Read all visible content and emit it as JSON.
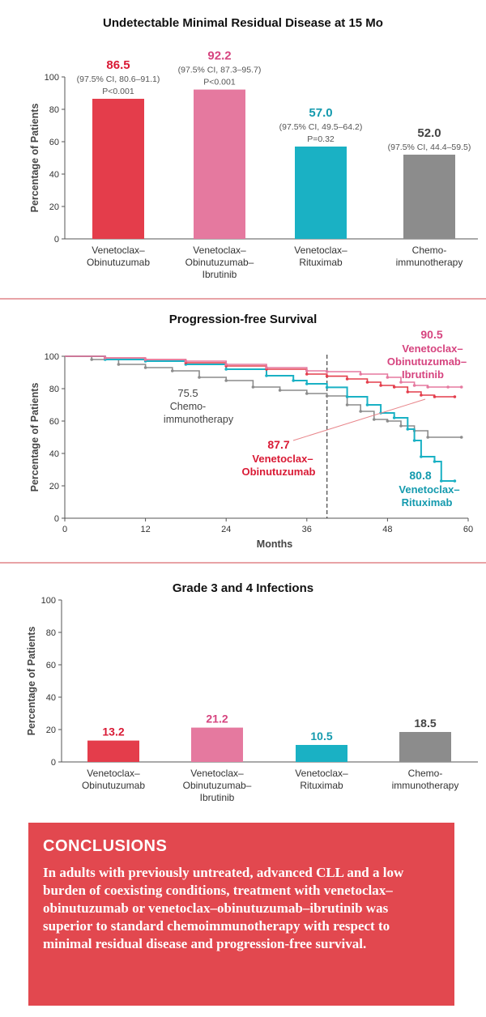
{
  "panel1": {
    "title": "Undetectable Minimal Residual Disease at 15 Mo",
    "ylabel": "Percentage of Patients"
  },
  "panel2": {
    "title": "Progression-free Survival",
    "ylabel": "Percentage of Patients",
    "xlabel": "Months",
    "labels": {
      "chemo_value": "75.5",
      "chemo_name1": "Chemo-",
      "chemo_name2": "immunotherapy",
      "vo_value": "87.7",
      "vo_name1": "Venetoclax–",
      "vo_name2": "Obinutuzumab",
      "voi_value": "90.5",
      "voi_name1": "Venetoclax–",
      "voi_name2": "Obinutuzumab–",
      "voi_name3": "Ibrutinib",
      "vr_value": "80.8",
      "vr_name1": "Venetoclax–",
      "vr_name2": "Rituximab"
    }
  },
  "panel3": {
    "title": "Grade 3 and 4 Infections",
    "ylabel": "Percentage of Patients"
  },
  "conclusions": {
    "heading": "CONCLUSIONS",
    "text": "In adults with previously untreated, advanced CLL and a low burden of coexisting conditions, treatment with venetoclax–obinutuzumab or venetoclax–obinutuzumab–ibrutinib was superior to standard chemoimmunotherapy with respect to minimal residual disease and progression-free survival."
  },
  "colors": {
    "vo": "#e43d4b",
    "voi": "#e5799f",
    "vr": "#1ab1c4",
    "chemo": "#8c8c8c",
    "vo_text": "#d91a35",
    "voi_text": "#d6447f",
    "vr_text": "#149aae",
    "chemo_text": "#444444"
  },
  "chart_data": [
    {
      "type": "bar",
      "title": "Undetectable Minimal Residual Disease at 15 Mo",
      "ylabel": "Percentage of Patients",
      "ylim": [
        0,
        100
      ],
      "yticks": [
        0,
        20,
        40,
        60,
        80,
        100
      ],
      "categories": [
        [
          "Venetoclax–",
          "Obinutuzumab"
        ],
        [
          "Venetoclax–",
          "Obinutuzumab–",
          "Ibrutinib"
        ],
        [
          "Venetoclax–",
          "Rituximab"
        ],
        [
          "Chemo-",
          "immunotherapy"
        ]
      ],
      "values": [
        86.5,
        92.2,
        57.0,
        52.0
      ],
      "value_labels": [
        "86.5",
        "92.2",
        "57.0",
        "52.0"
      ],
      "ci": [
        "(97.5% CI, 80.6–91.1)",
        "(97.5% CI, 87.3–95.7)",
        "(97.5% CI, 49.5–64.2)",
        "(97.5% CI, 44.4–59.5)"
      ],
      "p": [
        "P<0.001",
        "P<0.001",
        "P=0.32",
        ""
      ]
    },
    {
      "type": "line",
      "title": "Progression-free Survival",
      "xlabel": "Months",
      "ylabel": "Percentage of Patients",
      "xlim": [
        0,
        60
      ],
      "ylim": [
        0,
        100
      ],
      "xticks": [
        0,
        12,
        24,
        36,
        48,
        60
      ],
      "yticks": [
        0,
        20,
        40,
        60,
        80,
        100
      ],
      "reference_x": 39,
      "series": [
        {
          "key": "voi",
          "name": "Venetoclax–Obinutuzumab–Ibrutinib",
          "points": [
            [
              0,
              100
            ],
            [
              6,
              99
            ],
            [
              12,
              98
            ],
            [
              18,
              97
            ],
            [
              24,
              95
            ],
            [
              30,
              93
            ],
            [
              36,
              91
            ],
            [
              39,
              90.5
            ],
            [
              44,
              89
            ],
            [
              48,
              87
            ],
            [
              50,
              84
            ],
            [
              52,
              82
            ],
            [
              54,
              81
            ],
            [
              57,
              81
            ],
            [
              59,
              81
            ]
          ]
        },
        {
          "key": "vo",
          "name": "Venetoclax–Obinutuzumab",
          "points": [
            [
              0,
              100
            ],
            [
              6,
              99
            ],
            [
              12,
              98
            ],
            [
              18,
              96
            ],
            [
              24,
              94
            ],
            [
              30,
              92
            ],
            [
              36,
              89
            ],
            [
              39,
              87.7
            ],
            [
              42,
              86
            ],
            [
              45,
              84
            ],
            [
              47,
              82
            ],
            [
              49,
              81
            ],
            [
              51,
              78
            ],
            [
              53,
              76
            ],
            [
              55,
              75
            ],
            [
              58,
              75
            ]
          ]
        },
        {
          "key": "vr",
          "name": "Venetoclax–Rituximab",
          "points": [
            [
              0,
              100
            ],
            [
              6,
              98
            ],
            [
              12,
              97
            ],
            [
              18,
              95
            ],
            [
              24,
              92
            ],
            [
              30,
              88
            ],
            [
              34,
              85
            ],
            [
              36,
              83
            ],
            [
              39,
              80.8
            ],
            [
              42,
              75
            ],
            [
              45,
              70
            ],
            [
              47,
              65
            ],
            [
              49,
              62
            ],
            [
              51,
              55
            ],
            [
              52,
              48
            ],
            [
              53,
              38
            ],
            [
              55,
              35
            ],
            [
              56,
              23
            ],
            [
              58,
              23
            ]
          ]
        },
        {
          "key": "chemo",
          "name": "Chemoimmunotherapy",
          "points": [
            [
              0,
              100
            ],
            [
              4,
              98
            ],
            [
              8,
              95
            ],
            [
              12,
              93
            ],
            [
              16,
              91
            ],
            [
              20,
              87
            ],
            [
              24,
              85
            ],
            [
              28,
              81
            ],
            [
              32,
              79
            ],
            [
              36,
              77
            ],
            [
              39,
              75.5
            ],
            [
              42,
              70
            ],
            [
              44,
              66
            ],
            [
              46,
              61
            ],
            [
              48,
              60
            ],
            [
              50,
              57
            ],
            [
              52,
              54
            ],
            [
              54,
              50
            ],
            [
              59,
              50
            ]
          ]
        }
      ],
      "annotations": [
        "75.5 Chemo-immunotherapy",
        "87.7 Venetoclax–Obinutuzumab",
        "90.5 Venetoclax–Obinutuzumab–Ibrutinib",
        "80.8 Venetoclax–Rituximab"
      ]
    },
    {
      "type": "bar",
      "title": "Grade 3 and 4 Infections",
      "ylabel": "Percentage of Patients",
      "ylim": [
        0,
        100
      ],
      "yticks": [
        0,
        20,
        40,
        60,
        80,
        100
      ],
      "categories": [
        [
          "Venetoclax–",
          "Obinutuzumab"
        ],
        [
          "Venetoclax–",
          "Obinutuzumab–",
          "Ibrutinib"
        ],
        [
          "Venetoclax–",
          "Rituximab"
        ],
        [
          "Chemo-",
          "immunotherapy"
        ]
      ],
      "values": [
        13.2,
        21.2,
        10.5,
        18.5
      ],
      "value_labels": [
        "13.2",
        "21.2",
        "10.5",
        "18.5"
      ]
    }
  ]
}
